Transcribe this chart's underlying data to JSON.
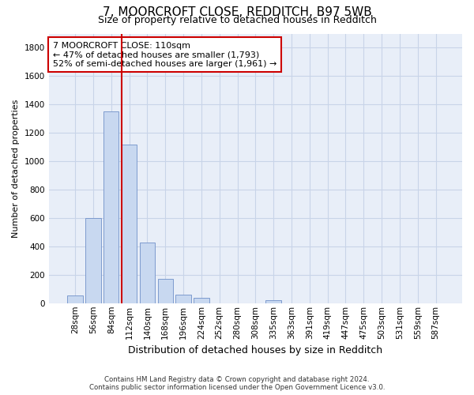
{
  "title_line1": "7, MOORCROFT CLOSE, REDDITCH, B97 5WB",
  "title_line2": "Size of property relative to detached houses in Redditch",
  "xlabel": "Distribution of detached houses by size in Redditch",
  "ylabel": "Number of detached properties",
  "footnote": "Contains HM Land Registry data © Crown copyright and database right 2024.\nContains public sector information licensed under the Open Government Licence v3.0.",
  "bar_labels": [
    "28sqm",
    "56sqm",
    "84sqm",
    "112sqm",
    "140sqm",
    "168sqm",
    "196sqm",
    "224sqm",
    "252sqm",
    "280sqm",
    "308sqm",
    "335sqm",
    "363sqm",
    "391sqm",
    "419sqm",
    "447sqm",
    "475sqm",
    "503sqm",
    "531sqm",
    "559sqm",
    "587sqm"
  ],
  "bar_values": [
    55,
    600,
    1350,
    1120,
    425,
    170,
    60,
    35,
    0,
    0,
    0,
    20,
    0,
    0,
    0,
    0,
    0,
    0,
    0,
    0,
    0
  ],
  "bar_color": "#c8d8f0",
  "bar_edge_color": "#7090c8",
  "vline_index": 3,
  "ylim": [
    0,
    1900
  ],
  "yticks": [
    0,
    200,
    400,
    600,
    800,
    1000,
    1200,
    1400,
    1600,
    1800
  ],
  "annotation_line1": "7 MOORCROFT CLOSE: 110sqm",
  "annotation_line2": "← 47% of detached houses are smaller (1,793)",
  "annotation_line3": "52% of semi-detached houses are larger (1,961) →",
  "annotation_box_color": "#cc0000",
  "vline_color": "#cc0000",
  "grid_color": "#c8d4e8",
  "background_color": "#e8eef8",
  "title1_fontsize": 11,
  "title2_fontsize": 9,
  "ylabel_fontsize": 8,
  "xlabel_fontsize": 9,
  "annot_fontsize": 8,
  "tick_fontsize": 7.5
}
